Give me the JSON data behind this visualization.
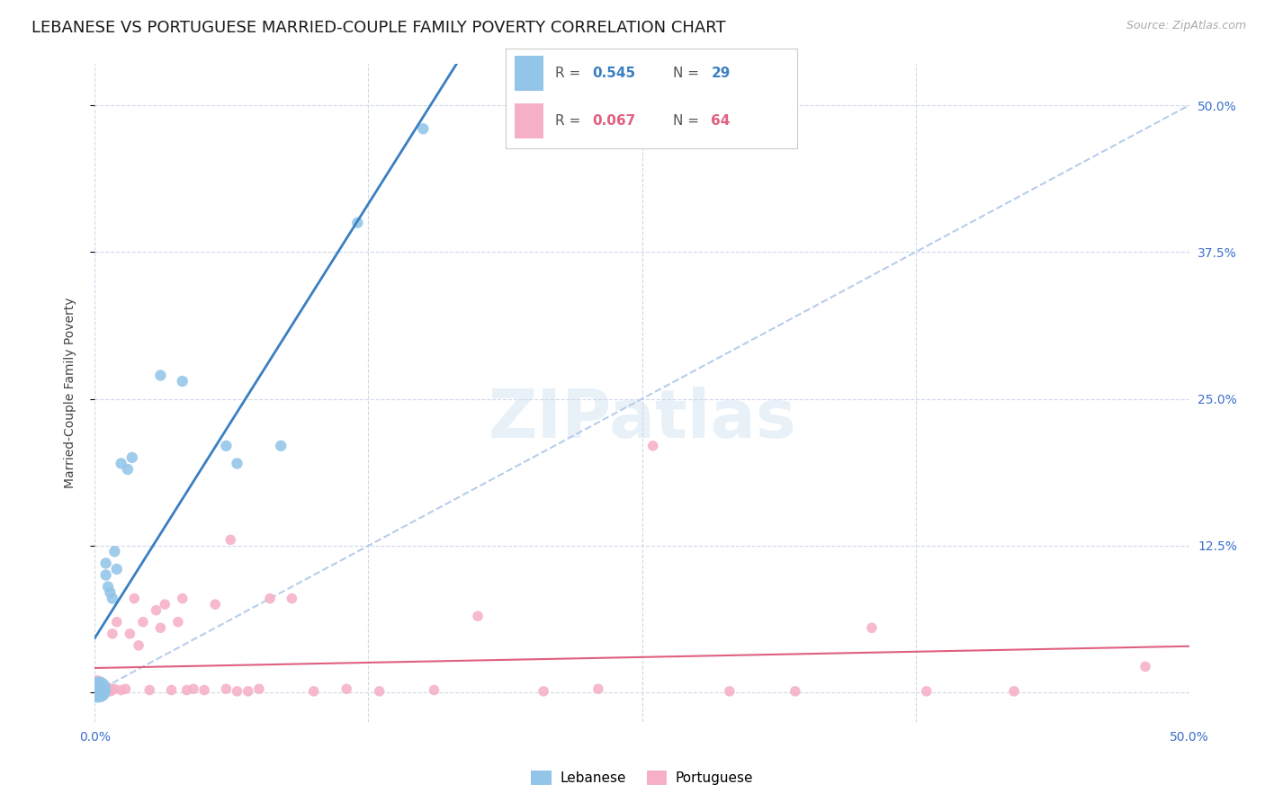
{
  "title": "LEBANESE VS PORTUGUESE MARRIED-COUPLE FAMILY POVERTY CORRELATION CHART",
  "source": "Source: ZipAtlas.com",
  "ylabel": "Married-Couple Family Poverty",
  "xlim": [
    0,
    0.5
  ],
  "ylim": [
    -0.025,
    0.535
  ],
  "leb_color": "#92c5e8",
  "por_color": "#f5b0c8",
  "leb_line_color": "#3a7fc1",
  "por_line_color": "#e06080",
  "diagonal_color": "#b0c8e8",
  "watermark": "ZIPatlas",
  "background_color": "#ffffff",
  "grid_color": "#d0d8ea",
  "title_fontsize": 13,
  "label_fontsize": 10,
  "tick_fontsize": 10,
  "tick_color": "#3a6fcc",
  "leb_x": [
    0.0005,
    0.001,
    0.001,
    0.0015,
    0.0015,
    0.002,
    0.002,
    0.002,
    0.003,
    0.003,
    0.004,
    0.004,
    0.005,
    0.005,
    0.006,
    0.007,
    0.008,
    0.009,
    0.01,
    0.012,
    0.015,
    0.017,
    0.03,
    0.04,
    0.06,
    0.065,
    0.085,
    0.12,
    0.15
  ],
  "leb_y": [
    0.001,
    0.001,
    0.003,
    0.001,
    0.002,
    0.001,
    0.002,
    0.004,
    0.001,
    0.002,
    0.001,
    0.003,
    0.1,
    0.11,
    0.09,
    0.085,
    0.08,
    0.12,
    0.105,
    0.195,
    0.19,
    0.2,
    0.27,
    0.265,
    0.21,
    0.195,
    0.21,
    0.4,
    0.48
  ],
  "por_x": [
    0.0005,
    0.0005,
    0.001,
    0.001,
    0.001,
    0.001,
    0.0015,
    0.0015,
    0.002,
    0.002,
    0.002,
    0.003,
    0.003,
    0.003,
    0.004,
    0.004,
    0.005,
    0.005,
    0.006,
    0.006,
    0.007,
    0.007,
    0.008,
    0.008,
    0.009,
    0.01,
    0.012,
    0.014,
    0.016,
    0.018,
    0.02,
    0.022,
    0.025,
    0.028,
    0.03,
    0.032,
    0.035,
    0.038,
    0.04,
    0.042,
    0.045,
    0.05,
    0.055,
    0.06,
    0.062,
    0.065,
    0.07,
    0.075,
    0.08,
    0.09,
    0.1,
    0.115,
    0.13,
    0.155,
    0.175,
    0.205,
    0.23,
    0.255,
    0.29,
    0.32,
    0.355,
    0.38,
    0.42,
    0.48
  ],
  "por_y": [
    0.001,
    0.004,
    0.001,
    0.003,
    0.005,
    0.007,
    0.001,
    0.003,
    0.001,
    0.004,
    0.006,
    0.001,
    0.003,
    0.005,
    0.002,
    0.005,
    0.001,
    0.003,
    0.002,
    0.004,
    0.001,
    0.003,
    0.002,
    0.05,
    0.003,
    0.06,
    0.002,
    0.003,
    0.05,
    0.08,
    0.04,
    0.06,
    0.002,
    0.07,
    0.055,
    0.075,
    0.002,
    0.06,
    0.08,
    0.002,
    0.003,
    0.002,
    0.075,
    0.003,
    0.13,
    0.001,
    0.001,
    0.003,
    0.08,
    0.08,
    0.001,
    0.003,
    0.001,
    0.002,
    0.065,
    0.001,
    0.003,
    0.21,
    0.001,
    0.001,
    0.055,
    0.001,
    0.001,
    0.022
  ]
}
